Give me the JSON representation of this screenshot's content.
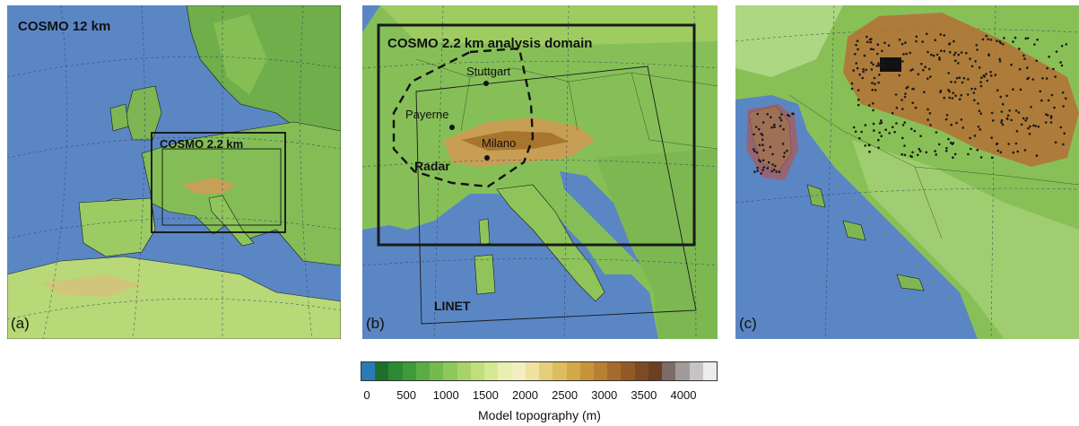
{
  "panels": {
    "a": {
      "label": "(a)",
      "title": "COSMO 12 km",
      "box_label": "COSMO 2.2 km"
    },
    "b": {
      "label": "(b)",
      "title": "COSMO 2.2 km analysis domain",
      "cities": [
        "Stuttgart",
        "Payerne",
        "Milano"
      ],
      "radar_label": "Radar",
      "linet_label": "LINET"
    },
    "c": {
      "label": "(c)"
    }
  },
  "colorbar": {
    "title": "Model topography (m)",
    "ticks": [
      "0",
      "500",
      "1000",
      "1500",
      "2000",
      "2500",
      "3000",
      "3500",
      "4000"
    ],
    "colors": [
      "#2a7ab8",
      "#1d6f2c",
      "#2b8a32",
      "#3f9b3a",
      "#5aad45",
      "#74bb4f",
      "#8fc85a",
      "#a8d368",
      "#c0de7a",
      "#d6e892",
      "#e8efb0",
      "#f2eec4",
      "#efe2a0",
      "#e6cf7c",
      "#ddbd5e",
      "#d3a948",
      "#c8943a",
      "#b97f32",
      "#a66b2c",
      "#915a27",
      "#7c4b24",
      "#6a3f22",
      "#7d6b66",
      "#a09a98",
      "#c6c4c3",
      "#ececec"
    ]
  }
}
